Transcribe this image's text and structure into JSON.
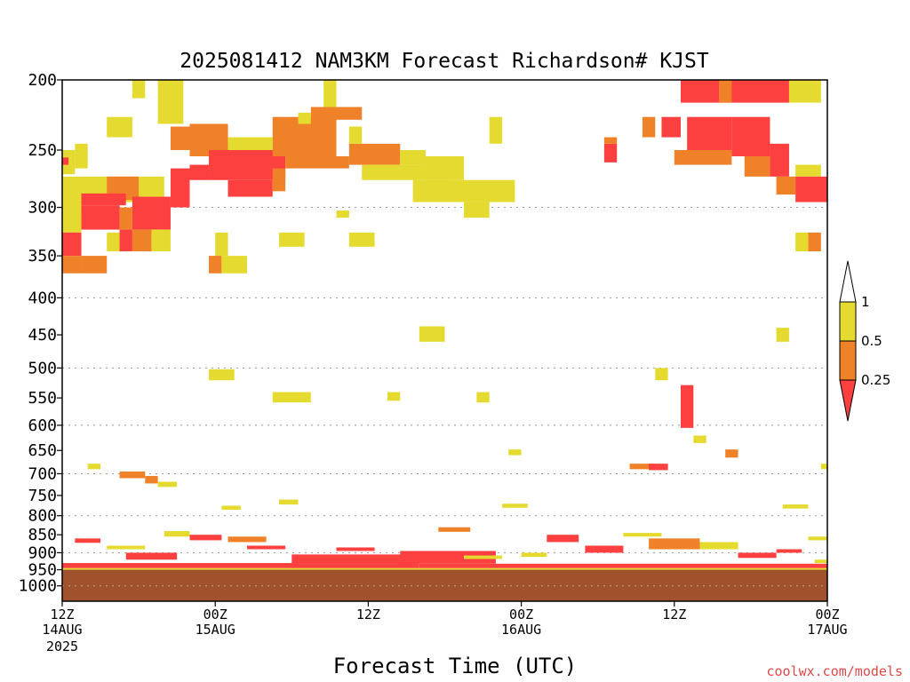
{
  "chart_data": {
    "type": "heatmap",
    "title": "2025081412 NAM3KM Forecast Richardson# KJST",
    "xlabel": "Forecast Time (UTC)",
    "ylabel": "",
    "credit": "coolwx.com/models",
    "y_scale": "log-pressure (hPa), inverted",
    "ylim": [
      1050,
      200
    ],
    "y_ticks": [
      200,
      250,
      300,
      350,
      400,
      450,
      500,
      550,
      600,
      650,
      700,
      750,
      800,
      850,
      900,
      950,
      1000
    ],
    "y_gridlines_dotted": [
      300,
      400,
      500,
      600,
      700,
      800,
      900,
      1000
    ],
    "xlim": [
      0,
      60
    ],
    "x_units": "hours after 12Z 14AUG 2025",
    "x_ticks": [
      {
        "hour": 0,
        "label": "12Z",
        "date": "14AUG",
        "year": "2025"
      },
      {
        "hour": 12,
        "label": "00Z",
        "date": "15AUG",
        "year": ""
      },
      {
        "hour": 24,
        "label": "12Z",
        "date": "",
        "year": ""
      },
      {
        "hour": 36,
        "label": "00Z",
        "date": "16AUG",
        "year": ""
      },
      {
        "hour": 48,
        "label": "12Z",
        "date": "",
        "year": ""
      },
      {
        "hour": 60,
        "label": "00Z",
        "date": "17AUG",
        "year": ""
      }
    ],
    "legend": {
      "placement": "right",
      "labels": [
        "1",
        "0.5",
        "0.25"
      ],
      "colors": {
        "le_0.25": "#fc4040",
        "0.25_0.5": "#ef8128",
        "0.5_1": "#e5db30",
        "gt_1": "#ffffff"
      }
    },
    "ground": {
      "color": "#a0522d",
      "from_hPa": 950
    },
    "bins": {
      "red": "Ri <= 0.25",
      "orange": "0.25 < Ri <= 0.5",
      "yellow": "0.5 < Ri <= 1"
    },
    "cells": [
      [
        0.0,
        1.0,
        250,
        270,
        "yellow"
      ],
      [
        1.0,
        2.0,
        245,
        265,
        "yellow"
      ],
      [
        0.0,
        0.5,
        256,
        262,
        "red"
      ],
      [
        0.0,
        8.0,
        272,
        295,
        "yellow"
      ],
      [
        3.5,
        6.0,
        272,
        293,
        "orange"
      ],
      [
        0.0,
        1.5,
        292,
        325,
        "yellow"
      ],
      [
        1.5,
        5.0,
        287,
        298,
        "red"
      ],
      [
        1.5,
        4.5,
        298,
        322,
        "red"
      ],
      [
        5.5,
        8.5,
        290,
        322,
        "red"
      ],
      [
        8.5,
        10.0,
        265,
        300,
        "red"
      ],
      [
        4.5,
        5.5,
        300,
        322,
        "orange"
      ],
      [
        0.0,
        1.5,
        325,
        350,
        "red"
      ],
      [
        0.0,
        1.5,
        350,
        370,
        "orange"
      ],
      [
        1.5,
        3.5,
        350,
        370,
        "orange"
      ],
      [
        3.5,
        5.0,
        325,
        345,
        "yellow"
      ],
      [
        4.5,
        5.5,
        322,
        345,
        "red"
      ],
      [
        5.5,
        7.0,
        322,
        345,
        "orange"
      ],
      [
        7.0,
        8.5,
        322,
        345,
        "yellow"
      ],
      [
        12.0,
        13.0,
        325,
        350,
        "yellow"
      ],
      [
        11.5,
        12.5,
        350,
        370,
        "orange"
      ],
      [
        12.5,
        14.5,
        350,
        370,
        "yellow"
      ],
      [
        17.0,
        19.0,
        325,
        340,
        "yellow"
      ],
      [
        22.5,
        24.5,
        325,
        340,
        "yellow"
      ],
      [
        21.5,
        22.5,
        303,
        310,
        "yellow"
      ],
      [
        7.5,
        9.5,
        200,
        230,
        "yellow"
      ],
      [
        5.5,
        6.5,
        200,
        212,
        "yellow"
      ],
      [
        3.5,
        5.5,
        225,
        240,
        "yellow"
      ],
      [
        10.0,
        13.0,
        230,
        255,
        "orange"
      ],
      [
        8.5,
        10.0,
        232,
        250,
        "orange"
      ],
      [
        13.0,
        16.5,
        240,
        252,
        "yellow"
      ],
      [
        11.5,
        17.5,
        250,
        275,
        "red"
      ],
      [
        10.0,
        11.5,
        262,
        275,
        "red"
      ],
      [
        13.0,
        16.5,
        275,
        290,
        "red"
      ],
      [
        16.5,
        21.5,
        225,
        255,
        "orange"
      ],
      [
        17.5,
        22.5,
        255,
        265,
        "orange"
      ],
      [
        16.5,
        17.5,
        265,
        285,
        "orange"
      ],
      [
        19.5,
        23.5,
        218,
        227,
        "orange"
      ],
      [
        20.5,
        21.5,
        200,
        218,
        "yellow"
      ],
      [
        18.5,
        19.5,
        222,
        230,
        "yellow"
      ],
      [
        22.5,
        26.5,
        245,
        262,
        "orange"
      ],
      [
        26.5,
        28.5,
        250,
        262,
        "yellow"
      ],
      [
        22.5,
        23.5,
        232,
        245,
        "yellow"
      ],
      [
        23.5,
        30.5,
        262,
        275,
        "yellow"
      ],
      [
        27.5,
        35.5,
        275,
        295,
        "yellow"
      ],
      [
        28.5,
        31.5,
        255,
        275,
        "yellow"
      ],
      [
        31.5,
        33.5,
        295,
        310,
        "yellow"
      ],
      [
        33.5,
        34.5,
        225,
        245,
        "yellow"
      ],
      [
        42.5,
        43.5,
        245,
        260,
        "red"
      ],
      [
        42.5,
        43.5,
        240,
        245,
        "orange"
      ],
      [
        45.5,
        46.5,
        225,
        240,
        "orange"
      ],
      [
        47.0,
        48.5,
        225,
        240,
        "red"
      ],
      [
        48.5,
        52.5,
        200,
        215,
        "red"
      ],
      [
        51.5,
        52.5,
        200,
        215,
        "orange"
      ],
      [
        49.0,
        52.5,
        225,
        250,
        "red"
      ],
      [
        48.0,
        52.5,
        250,
        262,
        "orange"
      ],
      [
        52.5,
        57.0,
        200,
        215,
        "red"
      ],
      [
        57.0,
        59.5,
        200,
        215,
        "yellow"
      ],
      [
        52.5,
        55.5,
        225,
        255,
        "red"
      ],
      [
        55.5,
        57.0,
        245,
        272,
        "red"
      ],
      [
        53.5,
        55.5,
        255,
        272,
        "orange"
      ],
      [
        56.0,
        57.5,
        272,
        288,
        "orange"
      ],
      [
        57.5,
        59.5,
        262,
        272,
        "yellow"
      ],
      [
        57.5,
        60.0,
        272,
        295,
        "red"
      ],
      [
        58.5,
        59.5,
        325,
        345,
        "orange"
      ],
      [
        57.5,
        58.5,
        325,
        345,
        "yellow"
      ],
      [
        56.0,
        57.0,
        440,
        460,
        "yellow"
      ],
      [
        28.0,
        30.0,
        438,
        460,
        "yellow"
      ],
      [
        11.5,
        13.5,
        502,
        520,
        "yellow"
      ],
      [
        16.5,
        19.5,
        540,
        558,
        "yellow"
      ],
      [
        25.5,
        26.5,
        540,
        555,
        "yellow"
      ],
      [
        32.5,
        33.5,
        540,
        558,
        "yellow"
      ],
      [
        46.5,
        47.5,
        500,
        520,
        "yellow"
      ],
      [
        48.5,
        49.5,
        528,
        605,
        "red"
      ],
      [
        49.5,
        50.5,
        620,
        635,
        "yellow"
      ],
      [
        52.0,
        53.0,
        648,
        665,
        "orange"
      ],
      [
        35.0,
        36.0,
        648,
        660,
        "yellow"
      ],
      [
        2.0,
        3.0,
        678,
        690,
        "yellow"
      ],
      [
        4.5,
        6.5,
        695,
        710,
        "orange"
      ],
      [
        6.5,
        7.5,
        705,
        722,
        "orange"
      ],
      [
        7.5,
        9.0,
        718,
        730,
        "yellow"
      ],
      [
        44.5,
        46.5,
        678,
        690,
        "orange"
      ],
      [
        46.0,
        47.5,
        678,
        692,
        "red"
      ],
      [
        59.5,
        60.0,
        678,
        690,
        "yellow"
      ],
      [
        12.5,
        14.0,
        775,
        785,
        "yellow"
      ],
      [
        17.0,
        18.5,
        760,
        772,
        "yellow"
      ],
      [
        34.5,
        36.5,
        770,
        780,
        "yellow"
      ],
      [
        56.5,
        58.5,
        772,
        782,
        "yellow"
      ],
      [
        0.0,
        60.0,
        945,
        950,
        "yellow"
      ],
      [
        0.0,
        28.0,
        930,
        945,
        "red"
      ],
      [
        28.0,
        60.0,
        932,
        945,
        "red"
      ],
      [
        18.0,
        27.5,
        905,
        930,
        "red"
      ],
      [
        26.5,
        34.0,
        895,
        932,
        "red"
      ],
      [
        5.0,
        9.0,
        900,
        920,
        "red"
      ],
      [
        38.0,
        40.5,
        850,
        870,
        "red"
      ],
      [
        41.0,
        44.0,
        880,
        900,
        "red"
      ],
      [
        46.0,
        50.0,
        860,
        890,
        "orange"
      ],
      [
        50.0,
        53.0,
        870,
        890,
        "yellow"
      ],
      [
        53.0,
        56.0,
        900,
        915,
        "red"
      ],
      [
        8.0,
        10.0,
        840,
        855,
        "yellow"
      ],
      [
        10.0,
        12.5,
        850,
        865,
        "red"
      ],
      [
        13.0,
        16.0,
        855,
        870,
        "orange"
      ],
      [
        1.0,
        3.0,
        860,
        872,
        "red"
      ],
      [
        3.5,
        6.5,
        880,
        890,
        "yellow"
      ],
      [
        14.5,
        17.5,
        880,
        890,
        "red"
      ],
      [
        21.5,
        24.5,
        885,
        895,
        "red"
      ],
      [
        29.5,
        32.0,
        830,
        842,
        "orange"
      ],
      [
        31.5,
        34.5,
        908,
        918,
        "yellow"
      ],
      [
        36.0,
        38.0,
        900,
        912,
        "yellow"
      ],
      [
        44.0,
        47.0,
        845,
        855,
        "yellow"
      ],
      [
        56.0,
        58.0,
        890,
        900,
        "red"
      ],
      [
        58.5,
        60.0,
        855,
        865,
        "yellow"
      ],
      [
        59.0,
        60.0,
        920,
        930,
        "yellow"
      ]
    ]
  }
}
